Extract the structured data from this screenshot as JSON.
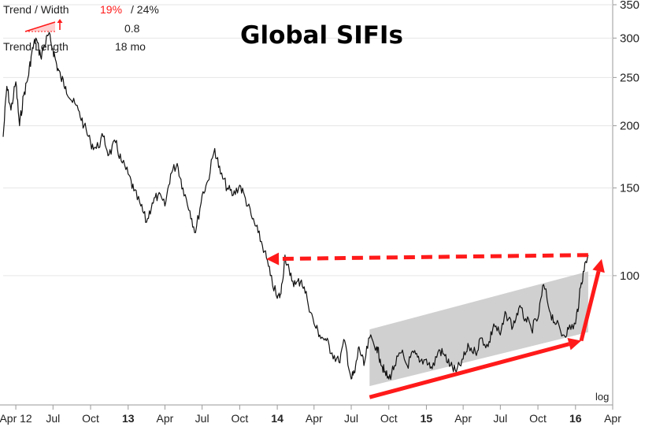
{
  "title": "Global SIFIs",
  "trend_box": {
    "trend_width_label": "Trend / Width",
    "trend_value": "19%",
    "width_value": "/ 24%",
    "slope_value": "0.8",
    "trend_length_label": "Trend Length",
    "trend_length_value": "18 mo"
  },
  "colors": {
    "price_line": "#111111",
    "channel_fill": "#c8c8c8",
    "annotation_red": "#ff1a1a",
    "grid": "#e6e6e6"
  },
  "chart_data": {
    "type": "line",
    "yscale": "log",
    "ylim": [
      55,
      350
    ],
    "y_ticks": [
      100,
      150,
      200,
      250,
      300,
      350
    ],
    "y_scale_label": "log",
    "x_ticks": [
      "Apr 12",
      "Jul",
      "Oct",
      "13",
      "Apr",
      "Jul",
      "Oct",
      "14",
      "Apr",
      "Jul",
      "Oct",
      "15",
      "Apr",
      "Jul",
      "Oct",
      "16",
      "Apr"
    ],
    "xlim": [
      "2012-03",
      "2016-04"
    ],
    "series": [
      {
        "values": [
          [
            "2012-03-01",
            190
          ],
          [
            "2012-03-10",
            240
          ],
          [
            "2012-03-20",
            215
          ],
          [
            "2012-04-01",
            245
          ],
          [
            "2012-04-10",
            200
          ],
          [
            "2012-04-20",
            230
          ],
          [
            "2012-05-01",
            250
          ],
          [
            "2012-05-10",
            280
          ],
          [
            "2012-05-20",
            300
          ],
          [
            "2012-06-01",
            275
          ],
          [
            "2012-06-10",
            290
          ],
          [
            "2012-06-20",
            305
          ],
          [
            "2012-07-01",
            285
          ],
          [
            "2012-07-10",
            265
          ],
          [
            "2012-07-20",
            250
          ],
          [
            "2012-08-01",
            240
          ],
          [
            "2012-08-15",
            225
          ],
          [
            "2012-09-01",
            215
          ],
          [
            "2012-09-15",
            200
          ],
          [
            "2012-10-01",
            185
          ],
          [
            "2012-10-15",
            180
          ],
          [
            "2012-11-01",
            190
          ],
          [
            "2012-11-15",
            175
          ],
          [
            "2012-12-01",
            185
          ],
          [
            "2012-12-15",
            170
          ],
          [
            "2013-01-01",
            160
          ],
          [
            "2013-01-15",
            148
          ],
          [
            "2013-02-01",
            138
          ],
          [
            "2013-02-15",
            128
          ],
          [
            "2013-03-01",
            140
          ],
          [
            "2013-03-15",
            145
          ],
          [
            "2013-04-01",
            138
          ],
          [
            "2013-04-15",
            160
          ],
          [
            "2013-05-01",
            168
          ],
          [
            "2013-05-15",
            150
          ],
          [
            "2013-06-01",
            135
          ],
          [
            "2013-06-15",
            122
          ],
          [
            "2013-07-01",
            145
          ],
          [
            "2013-07-15",
            155
          ],
          [
            "2013-08-01",
            180
          ],
          [
            "2013-08-15",
            160
          ],
          [
            "2013-09-01",
            150
          ],
          [
            "2013-09-15",
            145
          ],
          [
            "2013-10-01",
            152
          ],
          [
            "2013-10-15",
            143
          ],
          [
            "2013-11-01",
            130
          ],
          [
            "2013-11-15",
            122
          ],
          [
            "2013-12-01",
            112
          ],
          [
            "2013-12-15",
            100
          ],
          [
            "2014-01-01",
            90
          ],
          [
            "2014-01-10",
            92
          ],
          [
            "2014-01-20",
            110
          ],
          [
            "2014-02-01",
            100
          ],
          [
            "2014-02-15",
            96
          ],
          [
            "2014-03-01",
            98
          ],
          [
            "2014-03-15",
            90
          ],
          [
            "2014-04-01",
            80
          ],
          [
            "2014-04-15",
            76
          ],
          [
            "2014-05-01",
            74
          ],
          [
            "2014-05-15",
            70
          ],
          [
            "2014-06-01",
            67
          ],
          [
            "2014-06-15",
            74
          ],
          [
            "2014-07-01",
            62
          ],
          [
            "2014-07-10",
            64
          ],
          [
            "2014-07-20",
            72
          ],
          [
            "2014-08-01",
            66
          ],
          [
            "2014-08-15",
            75
          ],
          [
            "2014-09-01",
            72
          ],
          [
            "2014-09-10",
            68
          ],
          [
            "2014-09-20",
            64
          ],
          [
            "2014-10-01",
            62
          ],
          [
            "2014-10-15",
            66
          ],
          [
            "2014-11-01",
            70
          ],
          [
            "2014-11-15",
            66
          ],
          [
            "2014-12-01",
            70
          ],
          [
            "2014-12-15",
            67
          ],
          [
            "2015-01-01",
            68
          ],
          [
            "2015-01-15",
            65
          ],
          [
            "2015-02-01",
            71
          ],
          [
            "2015-02-15",
            69
          ],
          [
            "2015-03-01",
            66
          ],
          [
            "2015-03-15",
            64
          ],
          [
            "2015-04-01",
            68
          ],
          [
            "2015-04-15",
            72
          ],
          [
            "2015-05-01",
            70
          ],
          [
            "2015-05-15",
            75
          ],
          [
            "2015-06-01",
            72
          ],
          [
            "2015-06-15",
            80
          ],
          [
            "2015-07-01",
            76
          ],
          [
            "2015-07-15",
            84
          ],
          [
            "2015-08-01",
            79
          ],
          [
            "2015-08-15",
            86
          ],
          [
            "2015-09-01",
            82
          ],
          [
            "2015-09-15",
            78
          ],
          [
            "2015-10-01",
            82
          ],
          [
            "2015-10-15",
            96
          ],
          [
            "2015-11-01",
            84
          ],
          [
            "2015-11-15",
            80
          ],
          [
            "2015-12-01",
            76
          ],
          [
            "2015-12-15",
            78
          ],
          [
            "2016-01-01",
            80
          ],
          [
            "2016-01-10",
            90
          ],
          [
            "2016-01-20",
            102
          ],
          [
            "2016-02-01",
            110
          ]
        ]
      }
    ],
    "trend_channel": {
      "upper": [
        [
          "2014-08-15",
          78
        ],
        [
          "2016-02-01",
          102
        ]
      ],
      "lower": [
        [
          "2014-08-15",
          60
        ],
        [
          "2016-02-01",
          77
        ]
      ]
    },
    "annotations": [
      {
        "kind": "dashed-arrow",
        "from": [
          "2016-02-01",
          110
        ],
        "to": [
          "2013-12-05",
          108
        ]
      },
      {
        "kind": "arrow",
        "from": [
          "2014-08-15",
          57
        ],
        "to": [
          "2016-01-15",
          74
        ]
      },
      {
        "kind": "arrow",
        "from": [
          "2016-01-15",
          74
        ],
        "to": [
          "2016-03-05",
          108
        ]
      }
    ]
  }
}
